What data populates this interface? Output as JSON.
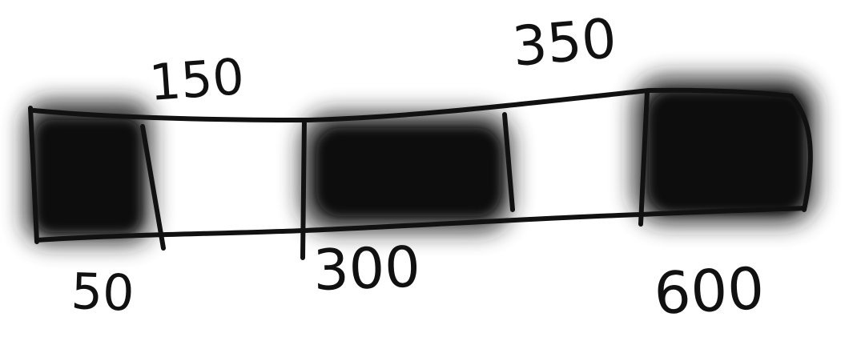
{
  "labels": {
    "top_left": "150",
    "top_right": "350",
    "bottom_left": "50",
    "bottom_middle": "300",
    "bottom_right": "600"
  },
  "colors": {
    "ink": "#111111",
    "shade": "#1a1a1a",
    "background": "#ffffff"
  },
  "segments": [
    {
      "state": "filled"
    },
    {
      "state": "empty"
    },
    {
      "state": "filled"
    },
    {
      "state": "empty"
    },
    {
      "state": "filled"
    }
  ]
}
